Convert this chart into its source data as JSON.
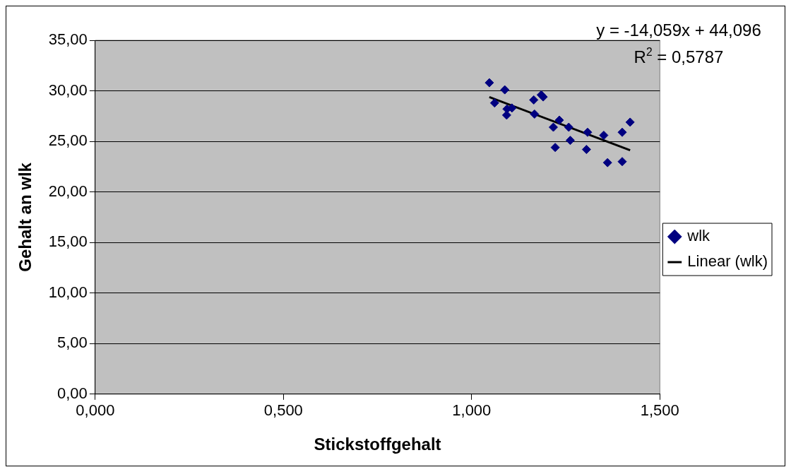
{
  "chart_data": {
    "type": "scatter",
    "xlabel": "Stickstoffgehalt",
    "ylabel": "Gehalt an wlk",
    "series": [
      {
        "name": "wlk",
        "type": "scatter",
        "color": "#000080",
        "marker": "diamond",
        "x": [
          1.047,
          1.088,
          1.061,
          1.094,
          1.107,
          1.093,
          1.165,
          1.185,
          1.19,
          1.167,
          1.233,
          1.217,
          1.258,
          1.262,
          1.222,
          1.308,
          1.305,
          1.351,
          1.361,
          1.4,
          1.4,
          1.421
        ],
        "values": [
          30.8,
          30.1,
          28.8,
          28.2,
          28.3,
          27.6,
          29.1,
          29.6,
          29.4,
          27.7,
          27.1,
          26.4,
          26.4,
          25.1,
          24.4,
          25.9,
          24.2,
          25.6,
          22.9,
          23.0,
          25.9,
          26.9
        ]
      },
      {
        "name": "Linear (wlk)",
        "type": "line",
        "color": "#000000",
        "marker": "none",
        "line_style": "solid",
        "x": [
          1.047,
          1.421
        ],
        "values": [
          29.38,
          24.12
        ]
      }
    ],
    "xlim": [
      0,
      1.5
    ],
    "xticks": [
      {
        "value": 0,
        "label": "0,000"
      },
      {
        "value": 0.5,
        "label": "0,500"
      },
      {
        "value": 1,
        "label": "1,000"
      },
      {
        "value": 1.5,
        "label": "1,500"
      }
    ],
    "ylim": [
      0,
      35
    ],
    "yticks": [
      {
        "value": 0,
        "label": "0,00"
      },
      {
        "value": 5,
        "label": "5,00"
      },
      {
        "value": 10,
        "label": "10,00"
      },
      {
        "value": 15,
        "label": "15,00"
      },
      {
        "value": 20,
        "label": "20,00"
      },
      {
        "value": 25,
        "label": "25,00"
      },
      {
        "value": 30,
        "label": "30,00"
      },
      {
        "value": 35,
        "label": "35,00"
      }
    ],
    "grid": "y",
    "legend": "right",
    "annotations": [
      "y = -14,059x + 44,096",
      "R$^{2}$ = 0,5787"
    ]
  }
}
